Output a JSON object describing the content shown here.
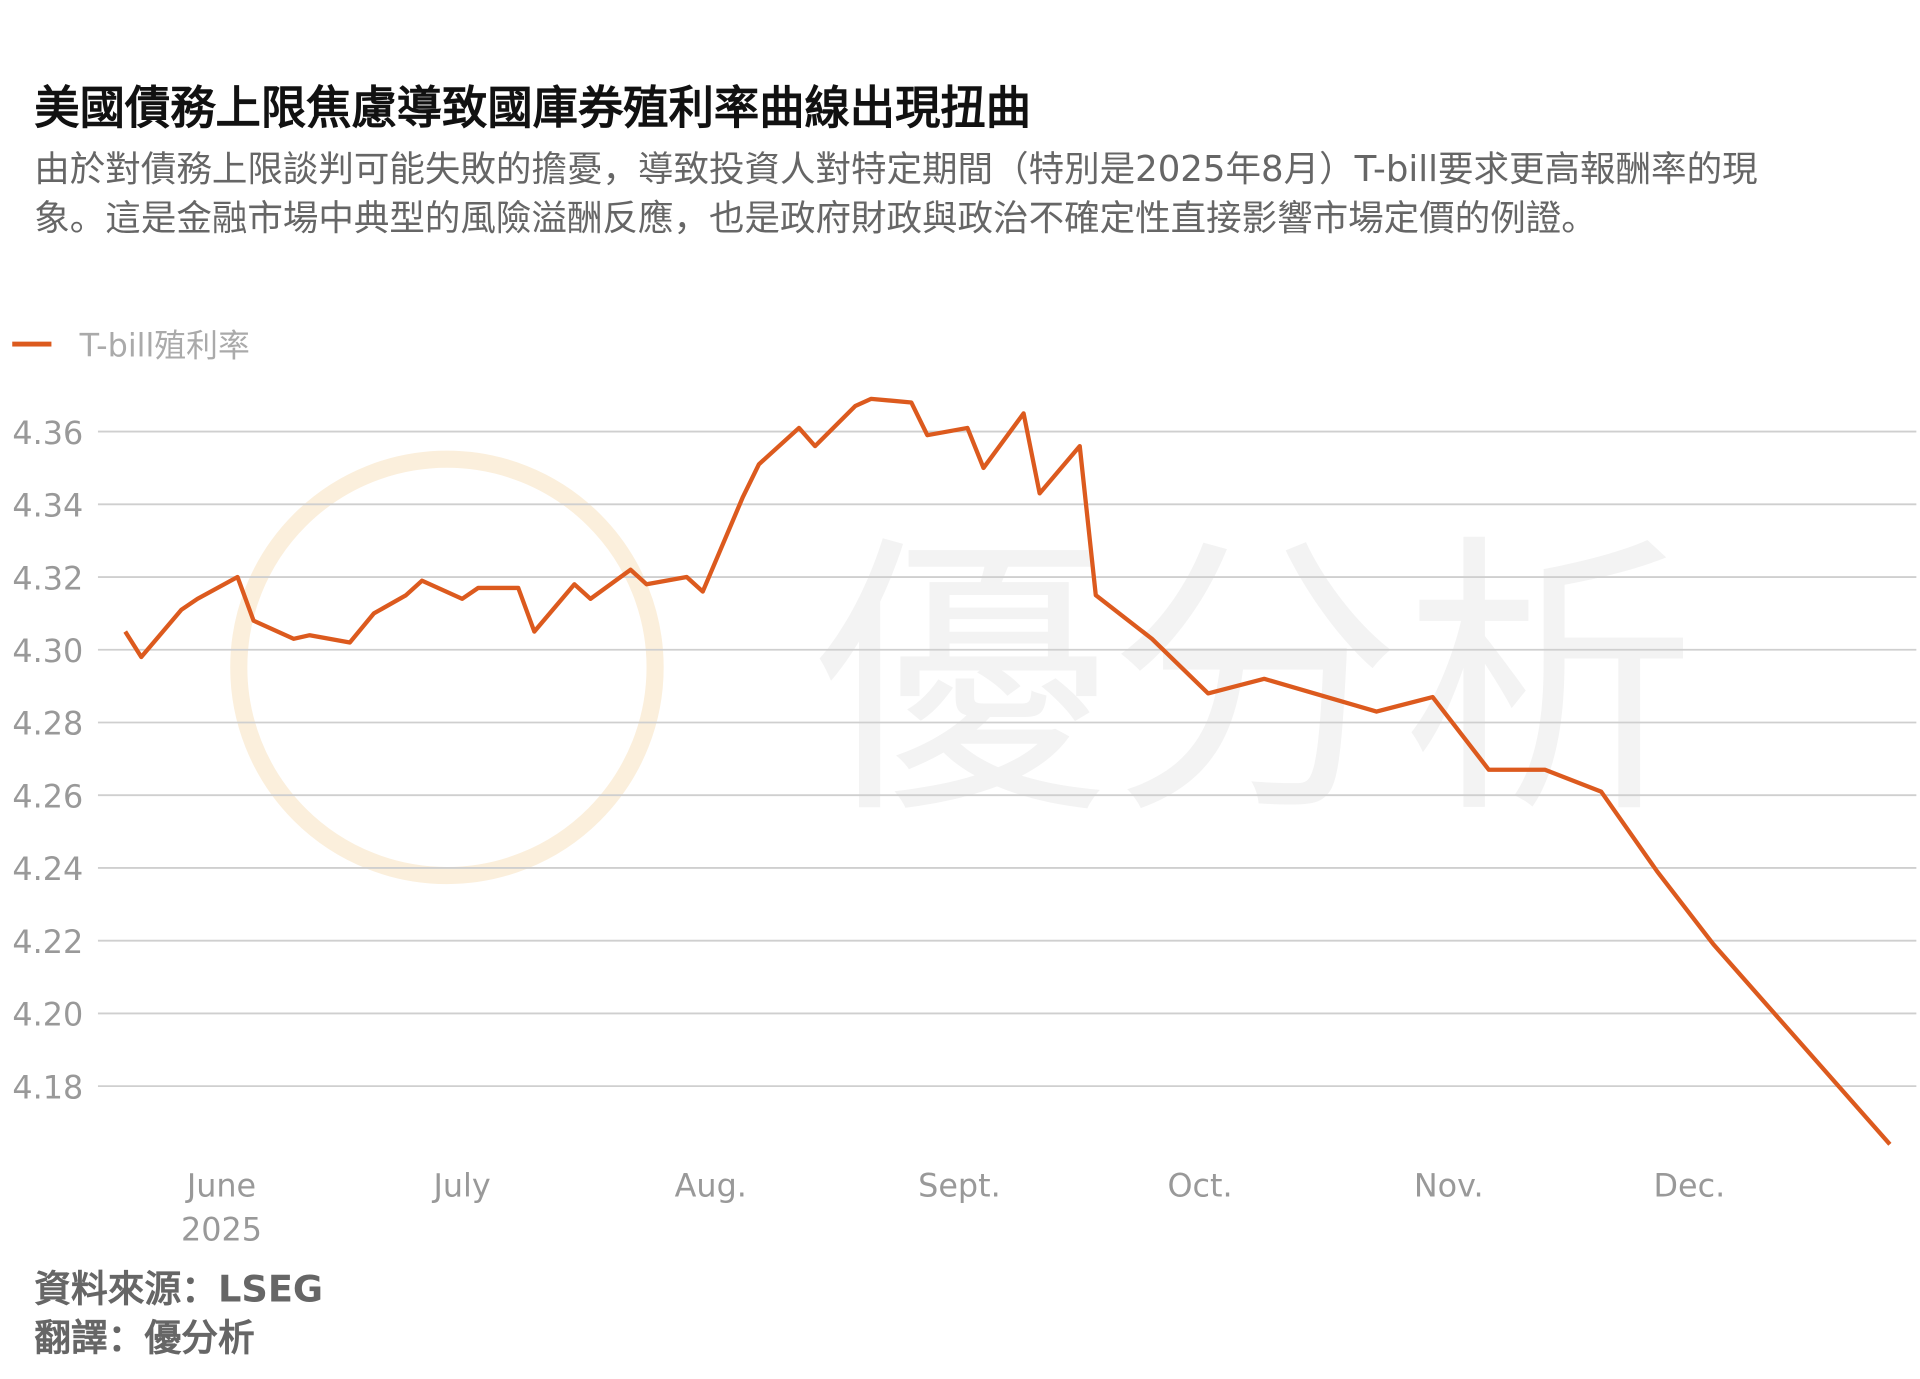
{
  "chart_data": {
    "type": "line",
    "title": "美國債務上限焦慮導致國庫券殖利率曲線出現扭曲",
    "subtitle": "由於對債務上限談判可能失敗的擔憂，導致投資人對特定期間（特別是2025年8月）T-bill要求更高報酬率的現象。這是金融市場中典型的風險溢酬反應，也是政府財政與政治不確定性直接影響市場定價的例證。",
    "x": [
      140,
      142,
      147,
      149,
      154,
      156,
      161,
      163,
      168,
      171,
      175,
      177,
      182,
      184,
      189,
      191,
      196,
      198,
      203,
      205,
      210,
      212,
      217,
      219,
      224,
      226,
      231,
      233,
      238,
      240,
      245,
      247,
      252,
      254,
      259,
      261,
      268,
      275,
      282,
      296,
      303,
      310,
      317,
      324,
      331,
      338,
      346,
      360
    ],
    "series": [
      {
        "name": "T-bill殖利率",
        "color": "#dc5a1e",
        "values": [
          4.305,
          4.298,
          4.311,
          4.314,
          4.32,
          4.308,
          4.303,
          4.304,
          4.302,
          4.31,
          4.315,
          4.319,
          4.314,
          4.317,
          4.317,
          4.305,
          4.318,
          4.314,
          4.322,
          4.318,
          4.32,
          4.316,
          4.342,
          4.351,
          4.361,
          4.356,
          4.367,
          4.369,
          4.368,
          4.359,
          4.361,
          4.35,
          4.365,
          4.343,
          4.356,
          4.315,
          4.303,
          4.288,
          4.292,
          4.283,
          4.287,
          4.267,
          4.267,
          4.261,
          4.239,
          4.219,
          4.199,
          4.164
        ]
      }
    ],
    "xlim": [
      136.6,
      363.3
    ],
    "xticks": [
      {
        "value": 152,
        "label": "June"
      },
      {
        "value": 182,
        "label": "July"
      },
      {
        "value": 213,
        "label": "Aug."
      },
      {
        "value": 244,
        "label": "Sept."
      },
      {
        "value": 274,
        "label": "Oct."
      },
      {
        "value": 305,
        "label": "Nov."
      },
      {
        "value": 335,
        "label": "Dec."
      }
    ],
    "year_label": "2025",
    "ylim": [
      4.16,
      4.372
    ],
    "yticks": [
      4.18,
      {
        "value": 4.2,
        "label": "4.20"
      },
      4.22,
      4.24,
      4.26,
      4.28,
      {
        "value": 4.3,
        "label": "4.30"
      },
      4.32,
      4.34,
      4.36
    ],
    "grid": true,
    "watermark": "優分析",
    "source": "資料來源：LSEG",
    "translation": "翻譯：優分析"
  }
}
